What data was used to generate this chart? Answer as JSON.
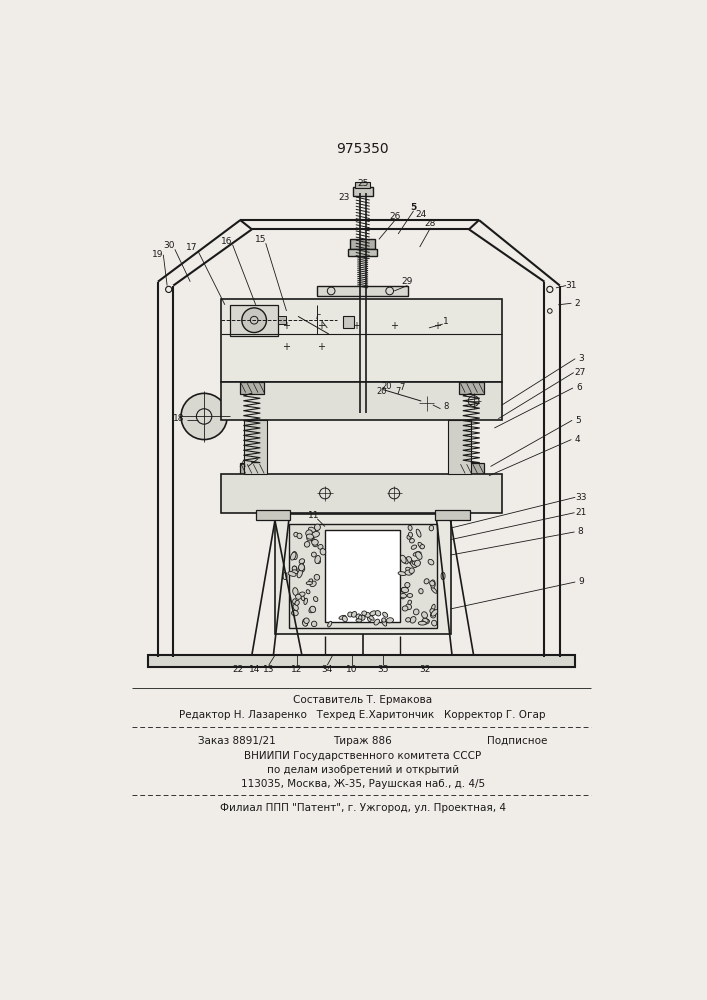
{
  "patent_number": "975350",
  "bg_color": "#f0ede8",
  "line_color": "#1a1a1a",
  "text_color": "#1a1a1a",
  "footer_line1": "Составитель Т. Ермакова",
  "footer_line2": "Редактор Н. Лазаренко   Техред Е.Харитончик   Корректор Г. Огар",
  "footer_line3a": "Заказ 8891/21",
  "footer_line3b": "Тираж 886",
  "footer_line3c": "Подписное",
  "footer_line4": "ВНИИПИ Государственного комитета СССР",
  "footer_line5": "по делам изобретений и открытий",
  "footer_line6": "113035, Москва, Ж-35, Раушская наб., д. 4/5",
  "footer_line7": "Филиал ППП \"Патент\", г. Ужгород, ул. Проектная, 4"
}
